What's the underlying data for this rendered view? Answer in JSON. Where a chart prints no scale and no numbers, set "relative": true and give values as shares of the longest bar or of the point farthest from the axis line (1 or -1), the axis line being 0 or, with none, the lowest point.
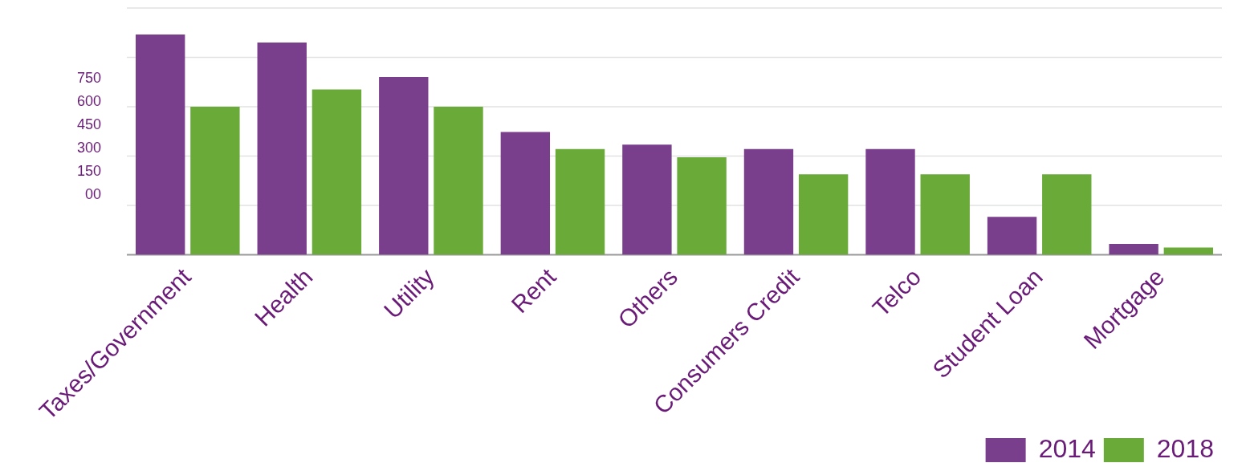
{
  "chart_data": {
    "type": "bar",
    "relative": true,
    "grid": true,
    "legend": "bottom right",
    "categories": [
      "Taxes/Government",
      "Health",
      "Utility",
      "Rent",
      "Others",
      "Consumers Credit",
      "Telco",
      "Student Loan",
      "Mortgage"
    ],
    "series": [
      {
        "name": "2014",
        "color": "#7a3f8c",
        "values": [
          1,
          0.963,
          0.807,
          0.557,
          0.5,
          0.48,
          0.48,
          0.172,
          0.049
        ]
      },
      {
        "name": "2018",
        "color": "#6aaa38",
        "values": [
          0.672,
          0.75,
          0.672,
          0.48,
          0.443,
          0.365,
          0.365,
          0.365,
          0.033
        ]
      }
    ],
    "annotations": [
      "750",
      "600",
      "450",
      "300",
      "150",
      "00"
    ]
  }
}
